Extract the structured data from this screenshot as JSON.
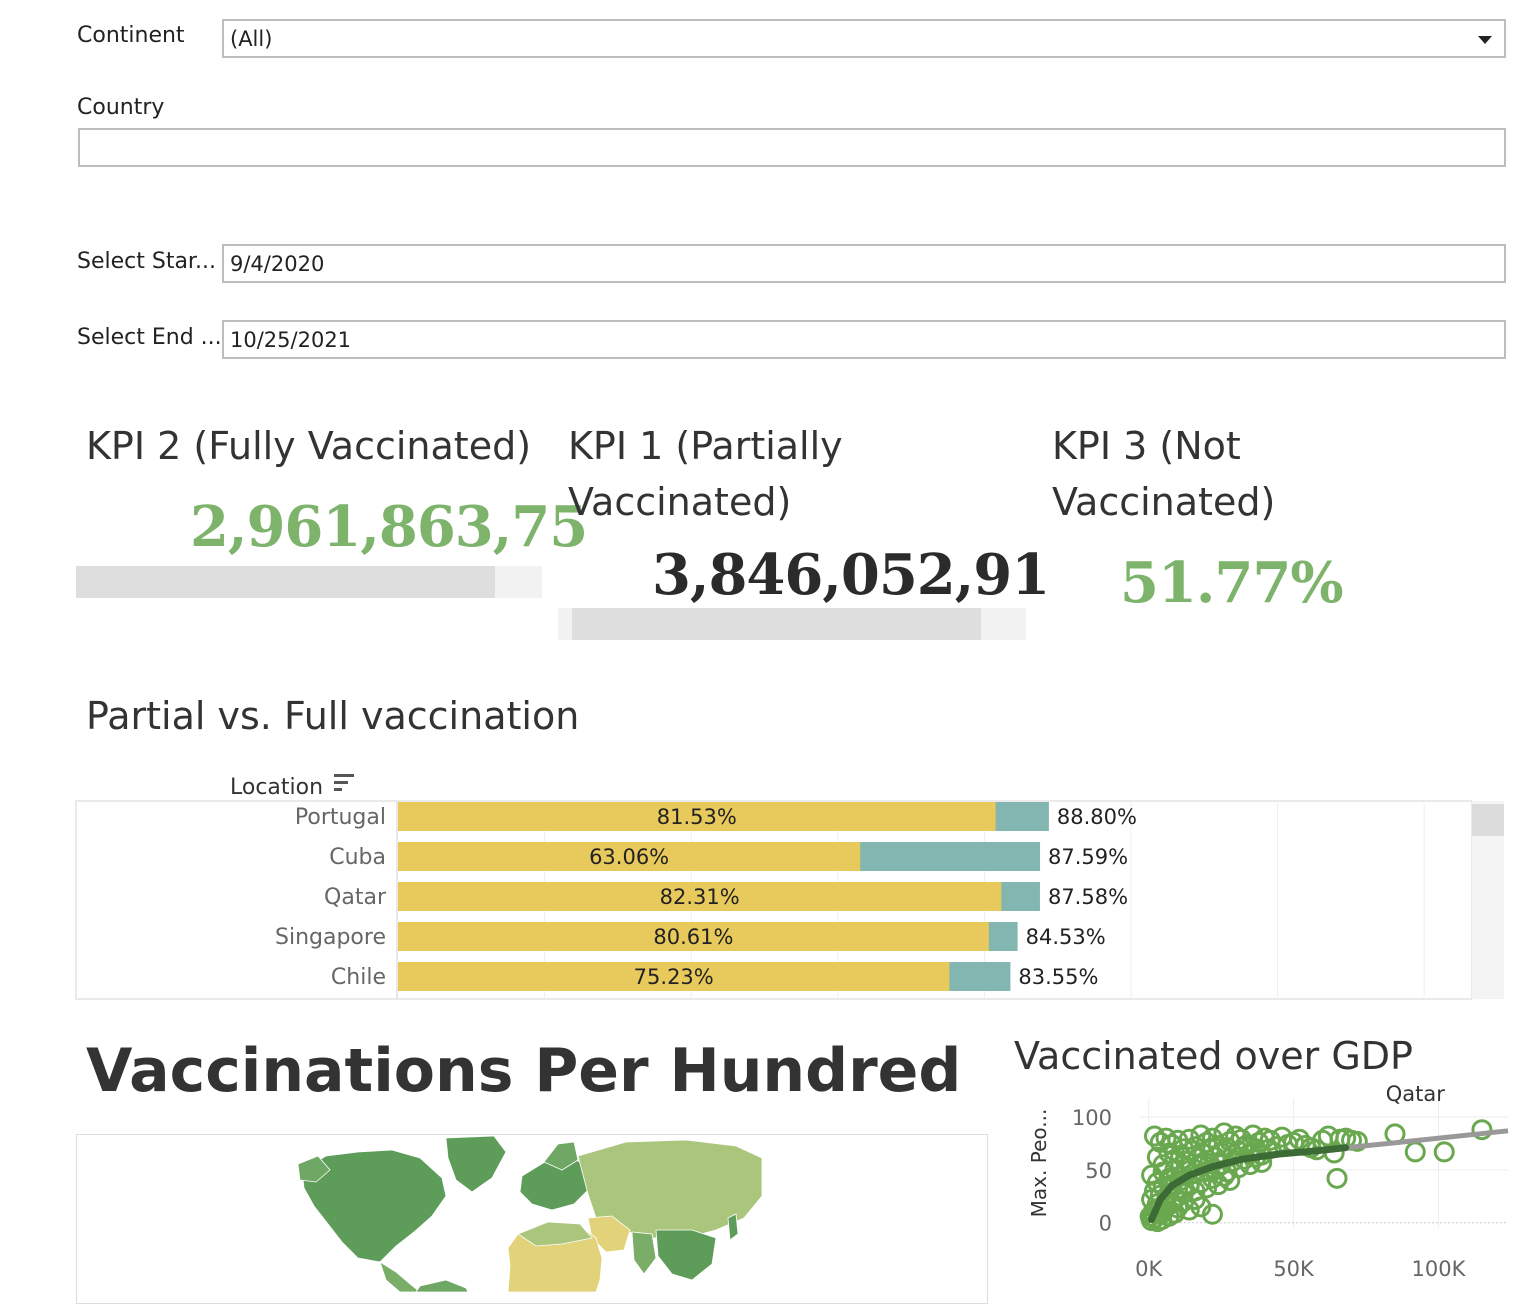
{
  "filters": {
    "continent": {
      "label": "Continent",
      "value": "(All)"
    },
    "country": {
      "label": "Country",
      "value": ""
    },
    "start": {
      "label": "Select Star...",
      "value": "9/4/2020"
    },
    "end": {
      "label": "Select End ...",
      "value": "10/25/2021"
    }
  },
  "kpis": [
    {
      "title": "KPI 2 (Fully Vaccinated)",
      "value": "2,961,863,75",
      "color": "#7db36a",
      "fill": 0.9
    },
    {
      "title": "KPI 1 (Partially Vaccinated)",
      "value": "3,846,052,91",
      "color": "#2b2b2b",
      "fill": 0.9
    },
    {
      "title": "KPI 3 (Not Vaccinated)",
      "value": "51.77%",
      "color": "#7db36a"
    }
  ],
  "colors": {
    "fully": "#e8c95c",
    "partial": "#83b6b0",
    "map_high": "#5e9c5a",
    "map_mid": "#a9c67c",
    "map_low": "#e2d27a",
    "scatter": "#6aa84f",
    "trend": "#3d6b35",
    "trend_ext": "#999999"
  },
  "chart_data": [
    {
      "type": "bar",
      "title": "Partial vs. Full vaccination",
      "row_header": "Location",
      "categories": [
        "Portugal",
        "Cuba",
        "Qatar",
        "Singapore",
        "Chile"
      ],
      "series": [
        {
          "values": [
            81.53,
            63.06,
            82.31,
            80.61,
            75.23
          ]
        },
        {
          "values": [
            88.8,
            87.59,
            87.58,
            84.53,
            83.55
          ]
        }
      ],
      "labels_fully": [
        "81.53%",
        "63.06%",
        "82.31%",
        "80.61%",
        "75.23%"
      ],
      "labels_total": [
        "88.80%",
        "87.59%",
        "87.58%",
        "84.53%",
        "83.55%"
      ],
      "xlim": [
        0,
        150
      ]
    },
    {
      "type": "scatter",
      "title": "Vaccinated over GDP",
      "ylabel": "Max. Peo...",
      "x_ticks": [
        "0K",
        "50K",
        "100K"
      ],
      "y_ticks": [
        "100",
        "50",
        "0"
      ],
      "xlim": [
        -3000,
        124000
      ],
      "ylim": [
        -5,
        118
      ],
      "annotation": {
        "text": "Qatar",
        "x": 92000,
        "y": 115
      },
      "points": [
        [
          2000,
          82
        ],
        [
          4000,
          76
        ],
        [
          6000,
          80
        ],
        [
          8000,
          74
        ],
        [
          10000,
          78
        ],
        [
          12000,
          70
        ],
        [
          14000,
          79
        ],
        [
          16000,
          72
        ],
        [
          18000,
          83
        ],
        [
          20000,
          76
        ],
        [
          22000,
          80
        ],
        [
          24000,
          73
        ],
        [
          26000,
          85
        ],
        [
          28000,
          77
        ],
        [
          30000,
          82
        ],
        [
          32000,
          79
        ],
        [
          34000,
          74
        ],
        [
          36000,
          83
        ],
        [
          38000,
          76
        ],
        [
          40000,
          80
        ],
        [
          42000,
          78
        ],
        [
          44000,
          72
        ],
        [
          46000,
          81
        ],
        [
          48000,
          74
        ],
        [
          50000,
          76
        ],
        [
          52000,
          79
        ],
        [
          54000,
          73
        ],
        [
          56000,
          71
        ],
        [
          58000,
          69
        ],
        [
          60000,
          78
        ],
        [
          62000,
          82
        ],
        [
          64000,
          66
        ],
        [
          66000,
          79
        ],
        [
          68000,
          80
        ],
        [
          70000,
          78
        ],
        [
          72000,
          77
        ],
        [
          85000,
          84
        ],
        [
          92000,
          67
        ],
        [
          102000,
          67
        ],
        [
          115000,
          88
        ],
        [
          3000,
          62
        ],
        [
          5000,
          55
        ],
        [
          7000,
          66
        ],
        [
          9000,
          60
        ],
        [
          11000,
          64
        ],
        [
          13000,
          58
        ],
        [
          15000,
          68
        ],
        [
          17000,
          61
        ],
        [
          19000,
          65
        ],
        [
          21000,
          70
        ],
        [
          23000,
          62
        ],
        [
          25000,
          66
        ],
        [
          27000,
          71
        ],
        [
          29000,
          64
        ],
        [
          31000,
          68
        ],
        [
          33000,
          72
        ],
        [
          35000,
          66
        ],
        [
          37000,
          70
        ],
        [
          39000,
          64
        ],
        [
          41000,
          69
        ],
        [
          1000,
          45
        ],
        [
          3000,
          38
        ],
        [
          5000,
          48
        ],
        [
          7000,
          42
        ],
        [
          9000,
          50
        ],
        [
          11000,
          44
        ],
        [
          13000,
          52
        ],
        [
          15000,
          46
        ],
        [
          17000,
          54
        ],
        [
          19000,
          48
        ],
        [
          21000,
          56
        ],
        [
          23000,
          50
        ],
        [
          25000,
          55
        ],
        [
          27000,
          48
        ],
        [
          29000,
          58
        ],
        [
          31000,
          52
        ],
        [
          33000,
          60
        ],
        [
          35000,
          55
        ],
        [
          37000,
          62
        ],
        [
          39000,
          57
        ],
        [
          1000,
          22
        ],
        [
          2000,
          30
        ],
        [
          3000,
          18
        ],
        [
          4000,
          26
        ],
        [
          5000,
          34
        ],
        [
          6000,
          20
        ],
        [
          7000,
          28
        ],
        [
          8000,
          36
        ],
        [
          9000,
          24
        ],
        [
          10000,
          32
        ],
        [
          11000,
          40
        ],
        [
          12000,
          28
        ],
        [
          14000,
          35
        ],
        [
          16000,
          30
        ],
        [
          18000,
          38
        ],
        [
          20000,
          33
        ],
        [
          22000,
          42
        ],
        [
          24000,
          36
        ],
        [
          26000,
          44
        ],
        [
          28000,
          40
        ],
        [
          500,
          6
        ],
        [
          1000,
          2
        ],
        [
          1500,
          10
        ],
        [
          2000,
          4
        ],
        [
          2500,
          12
        ],
        [
          3000,
          1
        ],
        [
          3500,
          8
        ],
        [
          4000,
          14
        ],
        [
          4500,
          3
        ],
        [
          5000,
          11
        ],
        [
          6000,
          16
        ],
        [
          7000,
          6
        ],
        [
          8000,
          18
        ],
        [
          9000,
          9
        ],
        [
          10000,
          14
        ],
        [
          12000,
          20
        ],
        [
          14000,
          12
        ],
        [
          16000,
          22
        ],
        [
          18000,
          15
        ],
        [
          22000,
          8
        ],
        [
          65000,
          42
        ]
      ],
      "trend": [
        [
          1000,
          3
        ],
        [
          4000,
          22
        ],
        [
          8000,
          35
        ],
        [
          14000,
          45
        ],
        [
          22000,
          53
        ],
        [
          32000,
          60
        ],
        [
          45000,
          65
        ],
        [
          58000,
          68
        ],
        [
          68000,
          71
        ]
      ],
      "trend_ext": [
        [
          68000,
          71
        ],
        [
          90000,
          77
        ],
        [
          124000,
          87
        ]
      ]
    }
  ],
  "map": {
    "title": "Vaccinations Per Hundred"
  }
}
